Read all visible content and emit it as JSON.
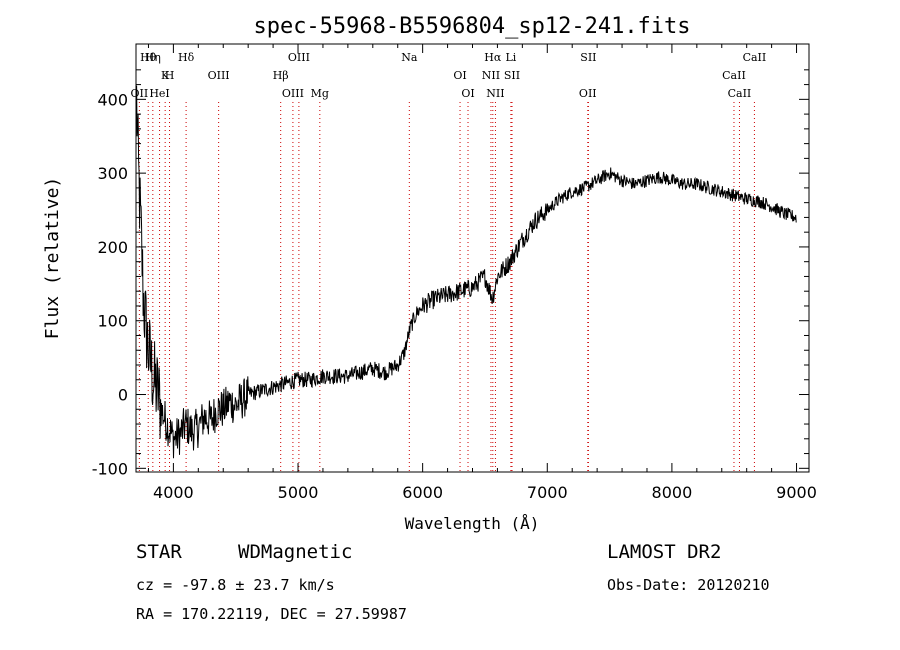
{
  "chart_data": {
    "type": "line",
    "title": "spec-55968-B5596804_sp12-241.fits",
    "xlabel": "Wavelength (Å)",
    "ylabel": "Flux (relative)",
    "xlim": [
      3700,
      9100
    ],
    "ylim": [
      -105,
      475
    ],
    "x_ticks": [
      4000,
      5000,
      6000,
      7000,
      8000,
      9000
    ],
    "y_ticks": [
      -100,
      0,
      100,
      200,
      300,
      400
    ],
    "grid": false,
    "line_color": "#000000",
    "marker_color": "#cc0000",
    "series": [
      {
        "x": [
          3705,
          3720,
          3740,
          3760,
          3780,
          3800,
          3820,
          3840,
          3860,
          3880,
          3900,
          3950,
          4000,
          4050,
          4100,
          4150,
          4200,
          4250,
          4300,
          4350,
          4400,
          4450,
          4500,
          4600,
          4700,
          4800,
          4900,
          5000,
          5100,
          5200,
          5300,
          5400,
          5500,
          5600,
          5700,
          5800,
          5850,
          5900,
          5950,
          6000,
          6100,
          6200,
          6300,
          6400,
          6500,
          6560,
          6600,
          6700,
          6800,
          6900,
          7000,
          7100,
          7200,
          7300,
          7400,
          7500,
          7600,
          7700,
          7800,
          7900,
          8000,
          8100,
          8200,
          8300,
          8400,
          8500,
          8600,
          8700,
          8800,
          8900,
          9000
        ],
        "y": [
          400,
          300,
          220,
          130,
          90,
          60,
          40,
          20,
          10,
          0,
          -20,
          -40,
          -60,
          -55,
          -40,
          -50,
          -45,
          -30,
          -35,
          -20,
          -20,
          -10,
          -15,
          0,
          5,
          10,
          15,
          20,
          20,
          25,
          25,
          25,
          30,
          35,
          30,
          40,
          55,
          90,
          110,
          120,
          130,
          135,
          140,
          145,
          160,
          130,
          160,
          180,
          210,
          235,
          250,
          265,
          275,
          280,
          290,
          300,
          290,
          285,
          290,
          295,
          290,
          285,
          285,
          280,
          275,
          270,
          265,
          262,
          255,
          245,
          240
        ]
      }
    ],
    "lines": [
      {
        "label": "Hθ",
        "x": 3798
      },
      {
        "label": "K",
        "x": 3934
      },
      {
        "label": "HeI",
        "x": 3889
      },
      {
        "label": "Hδ",
        "x": 4102
      },
      {
        "label": "OIII",
        "x": 4363
      },
      {
        "label": "OII",
        "x": 3727
      },
      {
        "label": "Hη",
        "x": 3835
      },
      {
        "label": "H",
        "x": 3969
      },
      {
        "label": "OIII",
        "x": 4959
      },
      {
        "label": "OIII",
        "x": 5007
      },
      {
        "label": "Hβ",
        "x": 4861
      },
      {
        "label": "Mg",
        "x": 5175
      },
      {
        "label": "Na",
        "x": 5893
      },
      {
        "label": "OI",
        "x": 6300
      },
      {
        "label": "OI",
        "x": 6364
      },
      {
        "label": "Hα",
        "x": 6563
      },
      {
        "label": "NII",
        "x": 6548
      },
      {
        "label": "NII",
        "x": 6584
      },
      {
        "label": "Li",
        "x": 6708
      },
      {
        "label": "SII",
        "x": 6717
      },
      {
        "label": "OII",
        "x": 7325
      },
      {
        "label": "SII",
        "x": 7330
      },
      {
        "label": "CaII",
        "x": 8498
      },
      {
        "label": "CaII",
        "x": 8542
      },
      {
        "label": "CaII",
        "x": 8662
      }
    ]
  },
  "info": {
    "object_class": "STAR",
    "subclass": "WDMagnetic",
    "survey": "LAMOST DR2",
    "cz": "cz = -97.8 ± 23.7 km/s",
    "obs_date": "Obs-Date: 20120210",
    "radec": "RA = 170.22119, DEC =  27.59987"
  }
}
